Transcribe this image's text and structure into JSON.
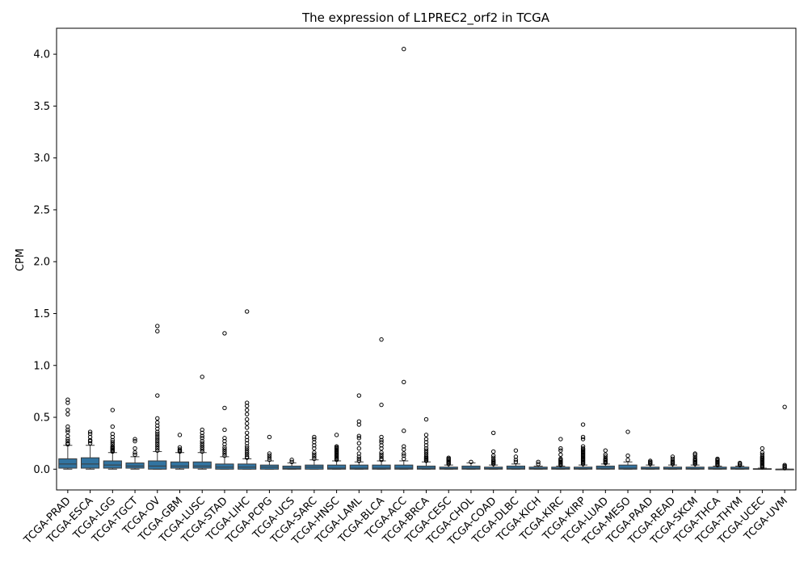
{
  "colors": {
    "box_fill": "#3274a1",
    "box_edge": "#3a3a3a",
    "outlier_edge": "#000000",
    "frame": "#000000"
  },
  "chart_data": {
    "type": "box",
    "title": "The expression of L1PREC2_orf2 in TCGA",
    "xlabel": "",
    "ylabel": "CPM",
    "ylim": [
      -0.2,
      4.25
    ],
    "yticks": [
      0.0,
      0.5,
      1.0,
      1.5,
      2.0,
      2.5,
      3.0,
      3.5,
      4.0
    ],
    "ytick_labels": [
      "0.0",
      "0.5",
      "1.0",
      "1.5",
      "2.0",
      "2.5",
      "3.0",
      "3.5",
      "4.0"
    ],
    "grid": false,
    "categories": [
      "TCGA-PRAD",
      "TCGA-ESCA",
      "TCGA-LGG",
      "TCGA-TGCT",
      "TCGA-OV",
      "TCGA-GBM",
      "TCGA-LUSC",
      "TCGA-STAD",
      "TCGA-LIHC",
      "TCGA-PCPG",
      "TCGA-UCS",
      "TCGA-SARC",
      "TCGA-HNSC",
      "TCGA-LAML",
      "TCGA-BLCA",
      "TCGA-ACC",
      "TCGA-BRCA",
      "TCGA-CESC",
      "TCGA-CHOL",
      "TCGA-COAD",
      "TCGA-DLBC",
      "TCGA-KICH",
      "TCGA-KIRC",
      "TCGA-KIRP",
      "TCGA-LUAD",
      "TCGA-MESO",
      "TCGA-PAAD",
      "TCGA-READ",
      "TCGA-SKCM",
      "TCGA-THCA",
      "TCGA-THYM",
      "TCGA-UCEC",
      "TCGA-UVM"
    ],
    "boxes": [
      {
        "whislo": 0.0,
        "q1": 0.01,
        "med": 0.05,
        "q3": 0.1,
        "whishi": 0.23,
        "fliers": [
          0.24,
          0.25,
          0.27,
          0.29,
          0.32,
          0.36,
          0.38,
          0.41,
          0.53,
          0.57,
          0.64,
          0.67
        ]
      },
      {
        "whislo": 0.0,
        "q1": 0.01,
        "med": 0.05,
        "q3": 0.11,
        "whishi": 0.23,
        "fliers": [
          0.25,
          0.27,
          0.28,
          0.31,
          0.34,
          0.36
        ]
      },
      {
        "whislo": 0.0,
        "q1": 0.01,
        "med": 0.04,
        "q3": 0.08,
        "whishi": 0.16,
        "fliers": [
          0.17,
          0.18,
          0.19,
          0.2,
          0.21,
          0.22,
          0.24,
          0.26,
          0.28,
          0.31,
          0.34,
          0.41,
          0.57
        ]
      },
      {
        "whislo": 0.0,
        "q1": 0.01,
        "med": 0.03,
        "q3": 0.06,
        "whishi": 0.12,
        "fliers": [
          0.14,
          0.16,
          0.2,
          0.27,
          0.29
        ]
      },
      {
        "whislo": 0.0,
        "q1": 0.0,
        "med": 0.03,
        "q3": 0.08,
        "whishi": 0.17,
        "fliers": [
          0.18,
          0.2,
          0.22,
          0.24,
          0.26,
          0.28,
          0.3,
          0.32,
          0.34,
          0.36,
          0.39,
          0.42,
          0.45,
          0.49,
          0.71,
          1.33,
          1.38
        ]
      },
      {
        "whislo": 0.0,
        "q1": 0.01,
        "med": 0.03,
        "q3": 0.07,
        "whishi": 0.16,
        "fliers": [
          0.17,
          0.18,
          0.19,
          0.21,
          0.33
        ]
      },
      {
        "whislo": 0.0,
        "q1": 0.01,
        "med": 0.03,
        "q3": 0.07,
        "whishi": 0.16,
        "fliers": [
          0.17,
          0.19,
          0.21,
          0.23,
          0.25,
          0.27,
          0.3,
          0.32,
          0.35,
          0.38,
          0.89
        ]
      },
      {
        "whislo": 0.0,
        "q1": 0.0,
        "med": 0.02,
        "q3": 0.05,
        "whishi": 0.12,
        "fliers": [
          0.13,
          0.15,
          0.17,
          0.19,
          0.21,
          0.24,
          0.27,
          0.3,
          0.38,
          0.59,
          1.31
        ]
      },
      {
        "whislo": 0.0,
        "q1": 0.0,
        "med": 0.02,
        "q3": 0.05,
        "whishi": 0.1,
        "fliers": [
          0.11,
          0.12,
          0.14,
          0.16,
          0.18,
          0.2,
          0.22,
          0.25,
          0.28,
          0.31,
          0.35,
          0.4,
          0.44,
          0.48,
          0.53,
          0.57,
          0.61,
          0.64,
          1.52
        ]
      },
      {
        "whislo": 0.0,
        "q1": 0.0,
        "med": 0.02,
        "q3": 0.04,
        "whishi": 0.08,
        "fliers": [
          0.09,
          0.11,
          0.13,
          0.15,
          0.31
        ]
      },
      {
        "whislo": 0.0,
        "q1": 0.0,
        "med": 0.01,
        "q3": 0.03,
        "whishi": 0.06,
        "fliers": [
          0.07,
          0.09
        ]
      },
      {
        "whislo": 0.0,
        "q1": 0.0,
        "med": 0.02,
        "q3": 0.04,
        "whishi": 0.09,
        "fliers": [
          0.1,
          0.12,
          0.14,
          0.16,
          0.2,
          0.23,
          0.26,
          0.29,
          0.31
        ]
      },
      {
        "whislo": 0.0,
        "q1": 0.0,
        "med": 0.01,
        "q3": 0.04,
        "whishi": 0.08,
        "fliers": [
          0.09,
          0.1,
          0.11,
          0.12,
          0.13,
          0.14,
          0.15,
          0.16,
          0.17,
          0.18,
          0.19,
          0.2,
          0.21,
          0.22,
          0.33
        ]
      },
      {
        "whislo": 0.0,
        "q1": 0.0,
        "med": 0.01,
        "q3": 0.04,
        "whishi": 0.07,
        "fliers": [
          0.08,
          0.1,
          0.12,
          0.15,
          0.2,
          0.25,
          0.3,
          0.32,
          0.43,
          0.46,
          0.71
        ]
      },
      {
        "whislo": 0.0,
        "q1": 0.0,
        "med": 0.01,
        "q3": 0.04,
        "whishi": 0.08,
        "fliers": [
          0.09,
          0.1,
          0.12,
          0.14,
          0.16,
          0.2,
          0.23,
          0.26,
          0.28,
          0.31,
          0.62,
          1.25
        ]
      },
      {
        "whislo": 0.0,
        "q1": 0.0,
        "med": 0.01,
        "q3": 0.04,
        "whishi": 0.08,
        "fliers": [
          0.1,
          0.13,
          0.15,
          0.19,
          0.22,
          0.37,
          0.84,
          4.05
        ]
      },
      {
        "whislo": 0.0,
        "q1": 0.0,
        "med": 0.01,
        "q3": 0.03,
        "whishi": 0.07,
        "fliers": [
          0.08,
          0.09,
          0.1,
          0.11,
          0.12,
          0.14,
          0.16,
          0.18,
          0.2,
          0.23,
          0.26,
          0.29,
          0.33,
          0.48
        ]
      },
      {
        "whislo": 0.0,
        "q1": 0.0,
        "med": 0.005,
        "q3": 0.02,
        "whishi": 0.04,
        "fliers": [
          0.05,
          0.06,
          0.07,
          0.08,
          0.09,
          0.1,
          0.11
        ]
      },
      {
        "whislo": 0.0,
        "q1": 0.0,
        "med": 0.01,
        "q3": 0.03,
        "whishi": 0.06,
        "fliers": [
          0.07
        ]
      },
      {
        "whislo": 0.0,
        "q1": 0.0,
        "med": 0.005,
        "q3": 0.02,
        "whishi": 0.04,
        "fliers": [
          0.05,
          0.06,
          0.07,
          0.08,
          0.09,
          0.11,
          0.13,
          0.17,
          0.35
        ]
      },
      {
        "whislo": 0.0,
        "q1": 0.0,
        "med": 0.01,
        "q3": 0.03,
        "whishi": 0.05,
        "fliers": [
          0.07,
          0.09,
          0.12,
          0.18
        ]
      },
      {
        "whislo": 0.0,
        "q1": 0.0,
        "med": 0.005,
        "q3": 0.02,
        "whishi": 0.03,
        "fliers": [
          0.05,
          0.07
        ]
      },
      {
        "whislo": 0.0,
        "q1": 0.0,
        "med": 0.005,
        "q3": 0.02,
        "whishi": 0.03,
        "fliers": [
          0.04,
          0.05,
          0.06,
          0.07,
          0.08,
          0.09,
          0.1,
          0.14,
          0.18,
          0.2,
          0.29
        ]
      },
      {
        "whislo": 0.0,
        "q1": 0.0,
        "med": 0.005,
        "q3": 0.02,
        "whishi": 0.04,
        "fliers": [
          0.05,
          0.06,
          0.07,
          0.08,
          0.09,
          0.1,
          0.11,
          0.12,
          0.13,
          0.14,
          0.15,
          0.16,
          0.17,
          0.18,
          0.19,
          0.2,
          0.22,
          0.29,
          0.31,
          0.43
        ]
      },
      {
        "whislo": 0.0,
        "q1": 0.0,
        "med": 0.01,
        "q3": 0.03,
        "whishi": 0.05,
        "fliers": [
          0.06,
          0.07,
          0.08,
          0.09,
          0.1,
          0.12,
          0.14,
          0.18
        ]
      },
      {
        "whislo": 0.0,
        "q1": 0.0,
        "med": 0.01,
        "q3": 0.04,
        "whishi": 0.07,
        "fliers": [
          0.09,
          0.13,
          0.36
        ]
      },
      {
        "whislo": 0.0,
        "q1": 0.0,
        "med": 0.005,
        "q3": 0.02,
        "whishi": 0.04,
        "fliers": [
          0.05,
          0.06,
          0.07,
          0.08
        ]
      },
      {
        "whislo": 0.0,
        "q1": 0.0,
        "med": 0.005,
        "q3": 0.02,
        "whishi": 0.04,
        "fliers": [
          0.05,
          0.06,
          0.07,
          0.08,
          0.1,
          0.12
        ]
      },
      {
        "whislo": 0.0,
        "q1": 0.0,
        "med": 0.005,
        "q3": 0.02,
        "whishi": 0.04,
        "fliers": [
          0.05,
          0.06,
          0.07,
          0.08,
          0.09,
          0.1,
          0.12,
          0.14,
          0.15
        ]
      },
      {
        "whislo": 0.0,
        "q1": 0.0,
        "med": 0.005,
        "q3": 0.02,
        "whishi": 0.03,
        "fliers": [
          0.04,
          0.05,
          0.06,
          0.07,
          0.08,
          0.09,
          0.1
        ]
      },
      {
        "whislo": 0.0,
        "q1": 0.0,
        "med": 0.005,
        "q3": 0.02,
        "whishi": 0.03,
        "fliers": [
          0.04,
          0.05,
          0.06
        ]
      },
      {
        "whislo": 0.0,
        "q1": 0.0,
        "med": 0.0,
        "q3": 0.005,
        "whishi": 0.01,
        "fliers": [
          0.02,
          0.03,
          0.04,
          0.05,
          0.06,
          0.07,
          0.08,
          0.09,
          0.1,
          0.11,
          0.12,
          0.14,
          0.16,
          0.2
        ]
      },
      {
        "whislo": 0.0,
        "q1": 0.0,
        "med": 0.0,
        "q3": 0.0,
        "whishi": 0.0,
        "fliers": [
          0.01,
          0.02,
          0.03,
          0.04,
          0.6
        ]
      }
    ]
  }
}
